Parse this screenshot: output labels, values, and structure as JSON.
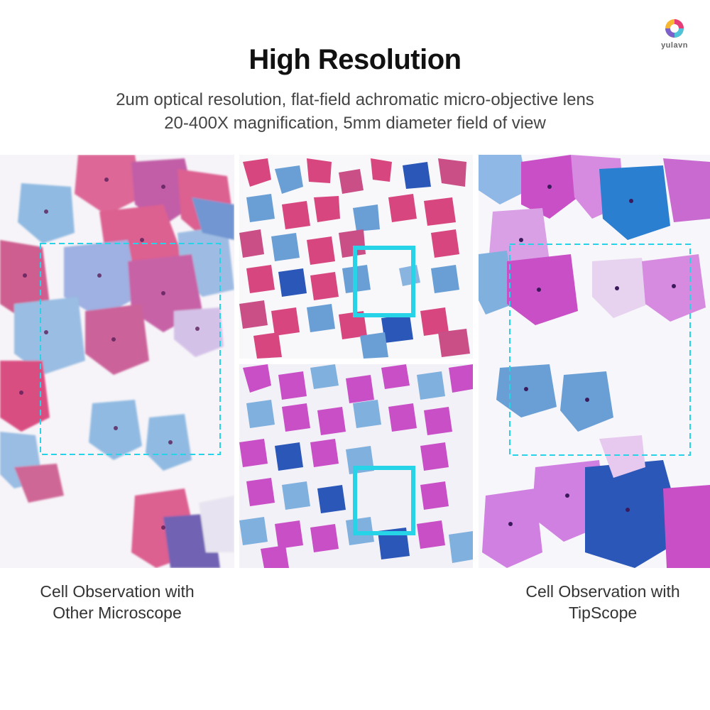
{
  "brand": {
    "name": "yulavn",
    "colors": [
      "#e63d7a",
      "#f7b733",
      "#4fc3d9",
      "#7b61c9"
    ]
  },
  "header": {
    "title": "High Resolution",
    "subtitle_line1": "2um optical resolution, flat-field achromatic micro-objective lens",
    "subtitle_line2": "20-400X magnification, 5mm diameter field of view"
  },
  "panels": {
    "left_caption_line1": "Cell Observation with",
    "left_caption_line2": "Other Microscope",
    "right_caption_line1": "Cell Observation with",
    "right_caption_line2": "TipScope"
  },
  "colors": {
    "highlight_box": "#27d3e6",
    "cell_pink": "#d8467f",
    "cell_magenta": "#c94fc7",
    "cell_blue": "#6a9fd6",
    "cell_dark_blue": "#2b57b8",
    "nucleus": "#5a1f5a"
  }
}
